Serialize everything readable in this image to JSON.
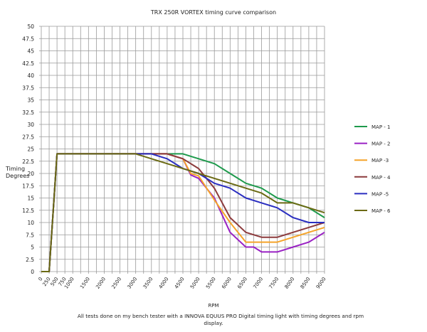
{
  "chart_data": {
    "type": "line",
    "title": "TRX 250R VORTEX timing curve comparison",
    "xlabel": "RPM",
    "ylabel": [
      "Timing",
      "Degrees"
    ],
    "caption": [
      "All tests done on my bench tester with a INNOVA EQUUS PRO Digital timing light with timing degrees and rpm",
      "display."
    ],
    "xlim": [
      0,
      9000
    ],
    "ylim": [
      0,
      50
    ],
    "x_ticks": [
      0,
      250,
      500,
      750,
      1000,
      1500,
      2000,
      2500,
      3000,
      3500,
      4000,
      4500,
      5000,
      5500,
      6000,
      6500,
      7000,
      7500,
      8000,
      8500,
      9000
    ],
    "y_ticks": [
      "0",
      "2.5",
      "5",
      "7.5",
      "10",
      "12.5",
      "15",
      "17.5",
      "20",
      "22.5",
      "25",
      "27.5",
      "30",
      "32.5",
      "35",
      "37.5",
      "40",
      "42.5",
      "45",
      "47.5",
      "50"
    ],
    "grid": true,
    "legend_position": "right",
    "series": [
      {
        "name": "MAP - 1",
        "color": "#1e9a4c",
        "points": [
          [
            0,
            0
          ],
          [
            250,
            0
          ],
          [
            500,
            24
          ],
          [
            4500,
            24
          ],
          [
            5000,
            23
          ],
          [
            5500,
            22
          ],
          [
            6000,
            20
          ],
          [
            6500,
            18
          ],
          [
            7000,
            17
          ],
          [
            7500,
            15
          ],
          [
            8000,
            14
          ],
          [
            8500,
            13
          ],
          [
            9000,
            11
          ]
        ]
      },
      {
        "name": "MAP - 2",
        "color": "#9a22c4",
        "points": [
          [
            0,
            0
          ],
          [
            250,
            0
          ],
          [
            500,
            24
          ],
          [
            4000,
            24
          ],
          [
            4500,
            23
          ],
          [
            4750,
            19.7
          ],
          [
            5000,
            19
          ],
          [
            5500,
            15
          ],
          [
            6000,
            8
          ],
          [
            6500,
            5
          ],
          [
            6750,
            5
          ],
          [
            7000,
            4
          ],
          [
            7500,
            4
          ],
          [
            8000,
            5
          ],
          [
            8500,
            6
          ],
          [
            9000,
            8
          ]
        ]
      },
      {
        "name": "MAP -3",
        "color": "#f5a42a",
        "points": [
          [
            0,
            0
          ],
          [
            250,
            0
          ],
          [
            500,
            24
          ],
          [
            4000,
            24
          ],
          [
            4500,
            23
          ],
          [
            4750,
            20
          ],
          [
            5000,
            19.5
          ],
          [
            5500,
            14.6
          ],
          [
            6000,
            10
          ],
          [
            6500,
            6
          ],
          [
            7000,
            6
          ],
          [
            7500,
            6
          ],
          [
            8000,
            7
          ],
          [
            8500,
            8
          ],
          [
            9000,
            9
          ]
        ]
      },
      {
        "name": "MAP - 4",
        "color": "#8c3a3c",
        "points": [
          [
            0,
            0
          ],
          [
            250,
            0
          ],
          [
            500,
            24
          ],
          [
            4000,
            24
          ],
          [
            4500,
            23
          ],
          [
            5000,
            21
          ],
          [
            5500,
            17
          ],
          [
            6000,
            11
          ],
          [
            6500,
            8
          ],
          [
            7000,
            7
          ],
          [
            7500,
            7
          ],
          [
            8000,
            8
          ],
          [
            8500,
            9
          ],
          [
            9000,
            10
          ]
        ]
      },
      {
        "name": "MAP -5",
        "color": "#2a2ec0",
        "points": [
          [
            0,
            0
          ],
          [
            250,
            0
          ],
          [
            500,
            24
          ],
          [
            3500,
            24
          ],
          [
            4000,
            23
          ],
          [
            4500,
            21
          ],
          [
            5000,
            20
          ],
          [
            5500,
            18
          ],
          [
            6000,
            17
          ],
          [
            6500,
            15
          ],
          [
            7000,
            14
          ],
          [
            7500,
            13
          ],
          [
            8000,
            11
          ],
          [
            8500,
            10
          ],
          [
            9000,
            10
          ]
        ]
      },
      {
        "name": "MAP - 6",
        "color": "#6b6a14",
        "points": [
          [
            0,
            0
          ],
          [
            250,
            0
          ],
          [
            500,
            24
          ],
          [
            3000,
            24
          ],
          [
            3500,
            23
          ],
          [
            4000,
            22
          ],
          [
            4500,
            21
          ],
          [
            5000,
            20
          ],
          [
            5500,
            19
          ],
          [
            6000,
            18
          ],
          [
            6500,
            17
          ],
          [
            7000,
            16
          ],
          [
            7500,
            14
          ],
          [
            8000,
            14
          ],
          [
            8500,
            13
          ],
          [
            9000,
            12
          ]
        ]
      }
    ]
  }
}
